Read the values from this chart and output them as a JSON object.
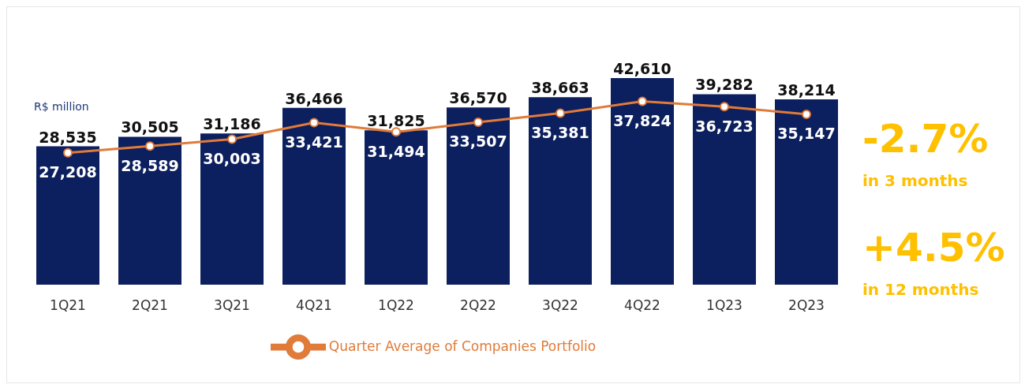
{
  "chart_data": {
    "type": "bar",
    "categories": [
      "1Q21",
      "2Q21",
      "3Q21",
      "4Q21",
      "1Q22",
      "2Q22",
      "3Q22",
      "4Q22",
      "1Q23",
      "2Q23"
    ],
    "series": [
      {
        "color": "#0c1f5e",
        "values": [
          28535,
          30505,
          31186,
          36466,
          31825,
          36570,
          38663,
          42610,
          39282,
          38214
        ],
        "value_labels": [
          "28,535",
          "30,505",
          "31,186",
          "36,466",
          "31,825",
          "36,570",
          "38,663",
          "42,610",
          "39,282",
          "38,214"
        ]
      },
      {
        "type": "line",
        "name": "Quarter Average of Companies Portfolio",
        "color": "#e07b39",
        "values": [
          27208,
          28589,
          30003,
          33421,
          31494,
          33507,
          35381,
          37824,
          36723,
          35147
        ],
        "value_labels": [
          "27,208",
          "28,589",
          "30,003",
          "33,421",
          "31,494",
          "33,507",
          "35,381",
          "37,824",
          "36,723",
          "35,147"
        ]
      }
    ],
    "marker": "circle",
    "line_style": "solid",
    "legend": "bottom",
    "annotations": [
      "R$ million",
      "-2.7%",
      "in 3 months",
      "+4.5%",
      "in 12 months"
    ]
  }
}
